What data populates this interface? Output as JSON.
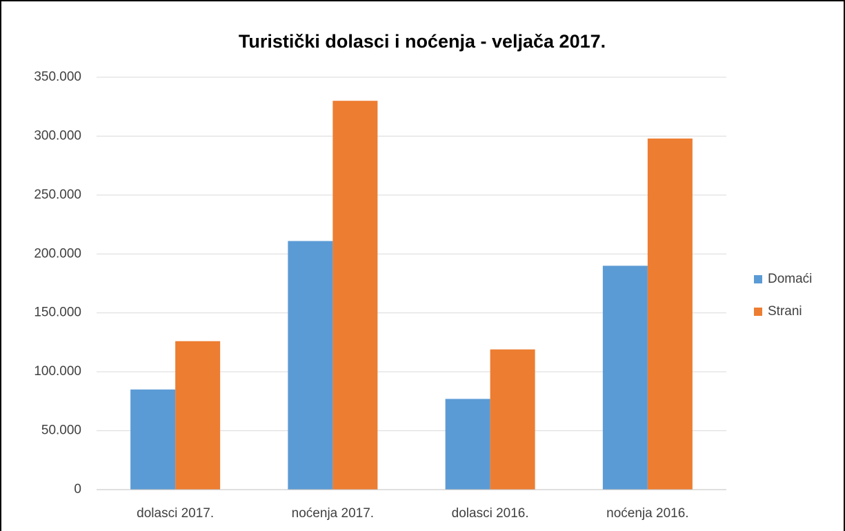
{
  "chart_data": {
    "type": "bar",
    "title": "Turistički dolasci i noćenja - veljača 2017.",
    "categories": [
      "dolasci 2017.",
      "noćenja 2017.",
      "dolasci 2016.",
      "noćenja 2016."
    ],
    "series": [
      {
        "name": "Domaći",
        "color": "#5b9bd5",
        "values": [
          85000,
          211000,
          77000,
          190000
        ]
      },
      {
        "name": "Strani",
        "color": "#ed7d31",
        "values": [
          126000,
          330000,
          119000,
          298000
        ]
      }
    ],
    "ylim": [
      0,
      350000
    ],
    "yticks": [
      0,
      {
        "value": 50000,
        "label": "50.000"
      },
      {
        "value": 100000,
        "label": "100.000"
      },
      {
        "value": 150000,
        "label": "150.000"
      },
      {
        "value": 200000,
        "label": "200.000"
      },
      {
        "value": 250000,
        "label": "250.000"
      },
      {
        "value": 300000,
        "label": "300.000"
      },
      {
        "value": 350000,
        "label": "350.000"
      }
    ],
    "grid": true,
    "legend": "right"
  }
}
